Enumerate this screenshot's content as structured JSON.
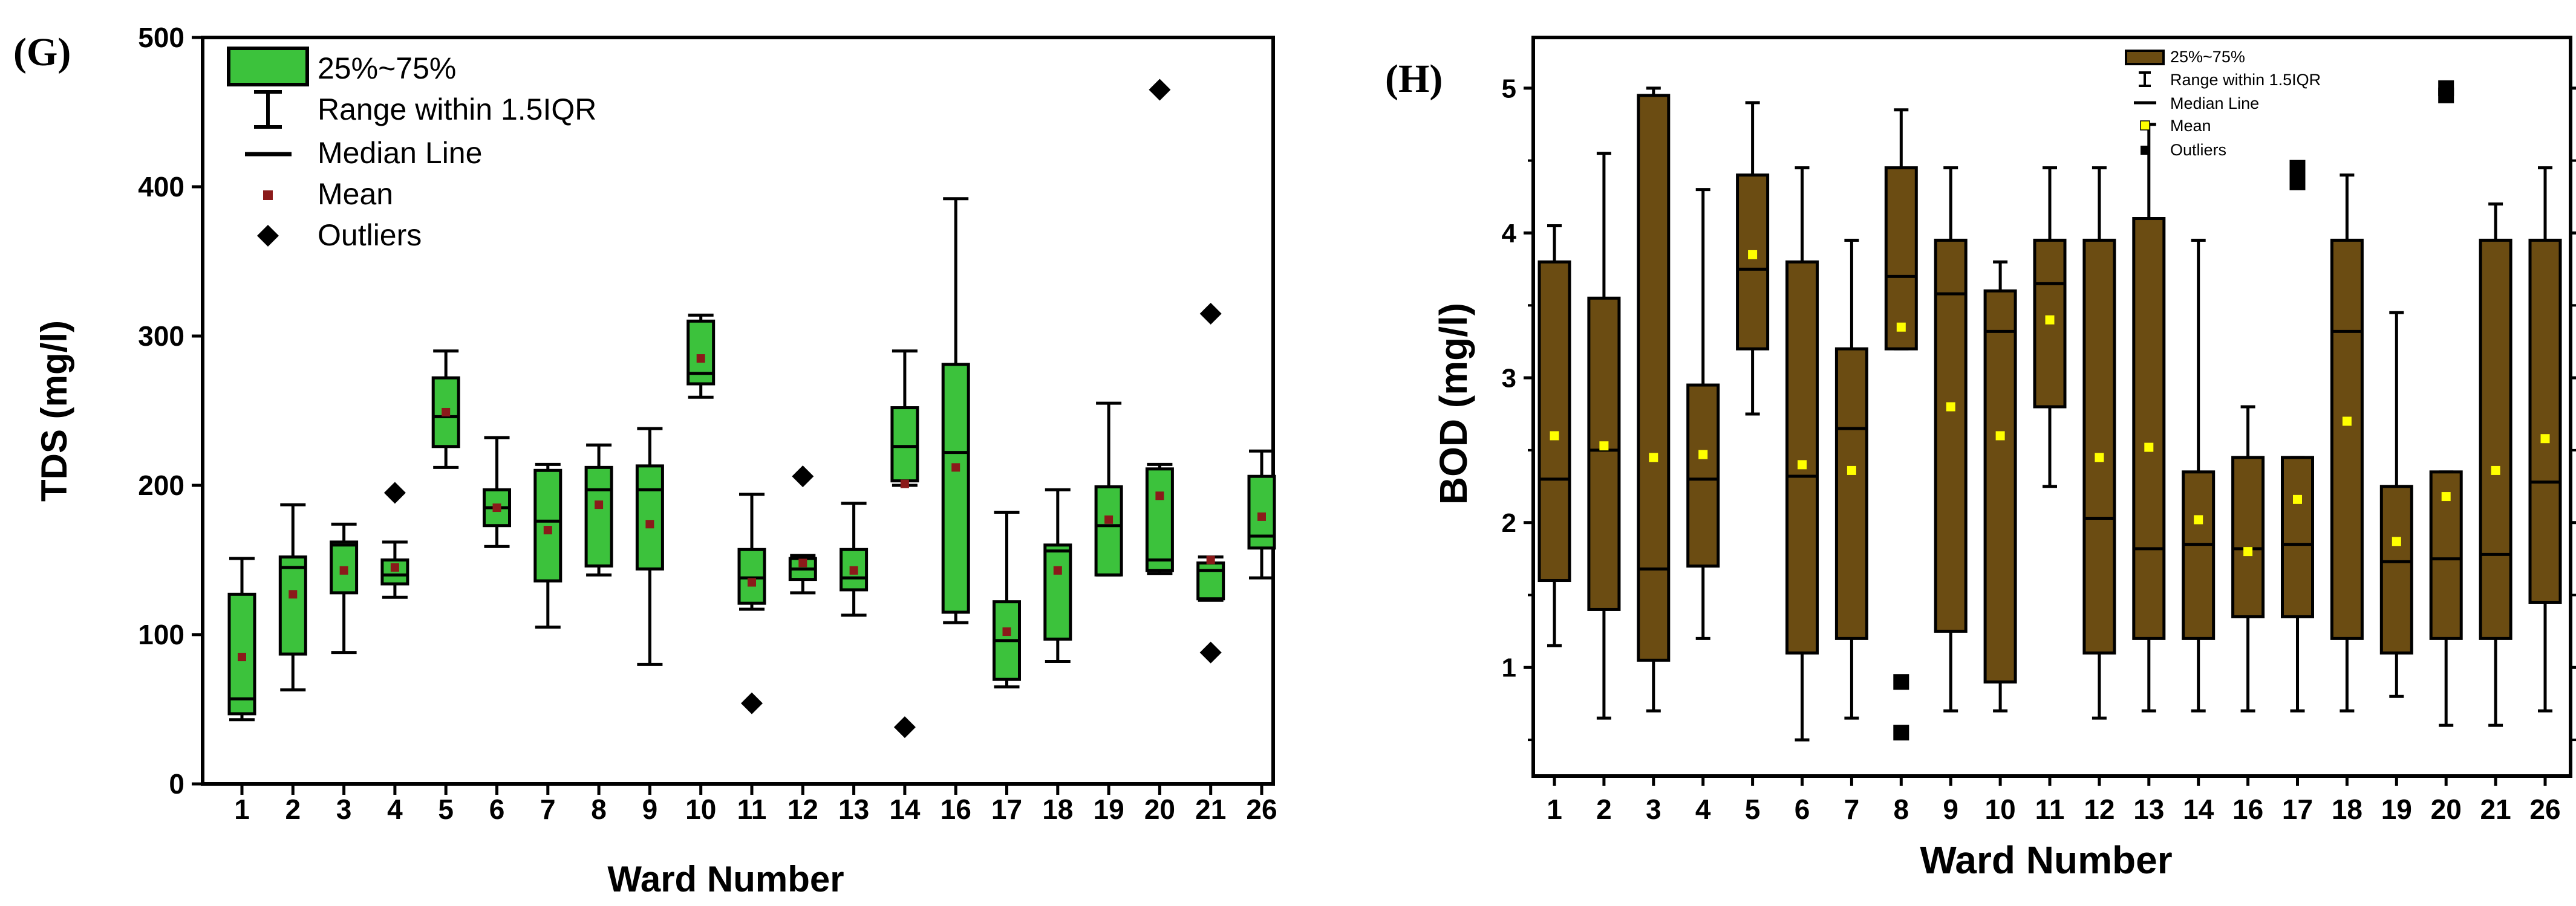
{
  "chart_data": [
    {
      "panel": "(G)",
      "type": "box",
      "xlabel": "Ward Number",
      "ylabel": "TDS (mg/l)",
      "ylim": [
        0,
        500
      ],
      "yticks": [
        0,
        100,
        200,
        300,
        400,
        500
      ],
      "categories": [
        "1",
        "2",
        "3",
        "4",
        "5",
        "6",
        "7",
        "8",
        "9",
        "10",
        "11",
        "12",
        "13",
        "14",
        "16",
        "17",
        "18",
        "19",
        "20",
        "21",
        "26"
      ],
      "boxes": [
        {
          "q1": 47,
          "median": 57,
          "q3": 127,
          "wlo": 43,
          "whi": 151,
          "mean": 85,
          "outliers": []
        },
        {
          "q1": 87,
          "median": 145,
          "q3": 152,
          "wlo": 63,
          "whi": 187,
          "mean": 127,
          "outliers": []
        },
        {
          "q1": 128,
          "median": 160,
          "q3": 162,
          "wlo": 88,
          "whi": 174,
          "mean": 143,
          "outliers": []
        },
        {
          "q1": 134,
          "median": 140,
          "q3": 150,
          "wlo": 125,
          "whi": 162,
          "mean": 145,
          "outliers": [
            195
          ]
        },
        {
          "q1": 226,
          "median": 246,
          "q3": 272,
          "wlo": 212,
          "whi": 290,
          "mean": 249,
          "outliers": []
        },
        {
          "q1": 173,
          "median": 185,
          "q3": 197,
          "wlo": 159,
          "whi": 232,
          "mean": 185,
          "outliers": []
        },
        {
          "q1": 136,
          "median": 176,
          "q3": 210,
          "wlo": 105,
          "whi": 214,
          "mean": 170,
          "outliers": []
        },
        {
          "q1": 146,
          "median": 197,
          "q3": 212,
          "wlo": 140,
          "whi": 227,
          "mean": 187,
          "outliers": []
        },
        {
          "q1": 144,
          "median": 197,
          "q3": 213,
          "wlo": 80,
          "whi": 238,
          "mean": 174,
          "outliers": []
        },
        {
          "q1": 268,
          "median": 275,
          "q3": 310,
          "wlo": 259,
          "whi": 314,
          "mean": 285,
          "outliers": []
        },
        {
          "q1": 121,
          "median": 138,
          "q3": 157,
          "wlo": 117,
          "whi": 194,
          "mean": 135,
          "outliers": [
            54
          ]
        },
        {
          "q1": 137,
          "median": 144,
          "q3": 151,
          "wlo": 128,
          "whi": 153,
          "mean": 148,
          "outliers": [
            206
          ]
        },
        {
          "q1": 130,
          "median": 138,
          "q3": 157,
          "wlo": 113,
          "whi": 188,
          "mean": 143,
          "outliers": []
        },
        {
          "q1": 203,
          "median": 226,
          "q3": 252,
          "wlo": 200,
          "whi": 290,
          "mean": 201,
          "outliers": [
            38
          ]
        },
        {
          "q1": 115,
          "median": 222,
          "q3": 281,
          "wlo": 108,
          "whi": 392,
          "mean": 212,
          "outliers": []
        },
        {
          "q1": 70,
          "median": 96,
          "q3": 122,
          "wlo": 65,
          "whi": 182,
          "mean": 102,
          "outliers": []
        },
        {
          "q1": 97,
          "median": 156,
          "q3": 160,
          "wlo": 82,
          "whi": 197,
          "mean": 143,
          "outliers": []
        },
        {
          "q1": 140,
          "median": 173,
          "q3": 199,
          "wlo": 140,
          "whi": 255,
          "mean": 177,
          "outliers": []
        },
        {
          "q1": 143,
          "median": 150,
          "q3": 211,
          "wlo": 141,
          "whi": 214,
          "mean": 193,
          "outliers": [
            465
          ]
        },
        {
          "q1": 124,
          "median": 143,
          "q3": 148,
          "wlo": 123,
          "whi": 152,
          "mean": 150,
          "outliers": [
            315,
            88
          ]
        },
        {
          "q1": 158,
          "median": 166,
          "q3": 206,
          "wlo": 138,
          "whi": 223,
          "mean": 179,
          "outliers": []
        }
      ],
      "legend": {
        "box": "25%~75%",
        "range": "Range within 1.5IQR",
        "median": "Median Line",
        "mean": "Mean",
        "outliers": "Outliers",
        "placement": "top-left"
      },
      "colors": {
        "box": "#3cc23c",
        "mean": "#8b1a1a",
        "outlier": "#000000"
      }
    },
    {
      "panel": "(H)",
      "type": "box",
      "xlabel": "Ward Number",
      "ylabel": "BOD (mg/l)",
      "ylim": [
        0.25,
        5.35
      ],
      "yticks": [
        1,
        2,
        3,
        4,
        5
      ],
      "categories": [
        "1",
        "2",
        "3",
        "4",
        "5",
        "6",
        "7",
        "8",
        "9",
        "10",
        "11",
        "12",
        "13",
        "14",
        "16",
        "17",
        "18",
        "19",
        "20",
        "21",
        "26"
      ],
      "boxes": [
        {
          "q1": 1.6,
          "median": 2.3,
          "q3": 3.8,
          "wlo": 1.15,
          "whi": 4.05,
          "mean": 2.6,
          "outliers": []
        },
        {
          "q1": 1.4,
          "median": 2.5,
          "q3": 3.55,
          "wlo": 0.65,
          "whi": 4.55,
          "mean": 2.53,
          "outliers": []
        },
        {
          "q1": 1.05,
          "median": 1.68,
          "q3": 4.95,
          "wlo": 0.7,
          "whi": 5.0,
          "mean": 2.45,
          "outliers": []
        },
        {
          "q1": 1.7,
          "median": 2.3,
          "q3": 2.95,
          "wlo": 1.2,
          "whi": 4.3,
          "mean": 2.47,
          "outliers": []
        },
        {
          "q1": 3.2,
          "median": 3.75,
          "q3": 4.4,
          "wlo": 2.75,
          "whi": 4.9,
          "mean": 3.85,
          "outliers": []
        },
        {
          "q1": 1.1,
          "median": 2.32,
          "q3": 3.8,
          "wlo": 0.5,
          "whi": 4.45,
          "mean": 2.4,
          "outliers": []
        },
        {
          "q1": 1.2,
          "median": 2.65,
          "q3": 3.2,
          "wlo": 0.65,
          "whi": 3.95,
          "mean": 2.36,
          "outliers": []
        },
        {
          "q1": 3.2,
          "median": 3.7,
          "q3": 4.45,
          "wlo": 3.2,
          "whi": 4.85,
          "mean": 3.35,
          "outliers": [
            0.9,
            0.55
          ]
        },
        {
          "q1": 1.25,
          "median": 3.58,
          "q3": 3.95,
          "wlo": 0.7,
          "whi": 4.45,
          "mean": 2.8,
          "outliers": []
        },
        {
          "q1": 0.9,
          "median": 3.32,
          "q3": 3.6,
          "wlo": 0.7,
          "whi": 3.8,
          "mean": 2.6,
          "outliers": []
        },
        {
          "q1": 2.8,
          "median": 3.65,
          "q3": 3.95,
          "wlo": 2.25,
          "whi": 4.45,
          "mean": 3.4,
          "outliers": []
        },
        {
          "q1": 1.1,
          "median": 2.03,
          "q3": 3.95,
          "wlo": 0.65,
          "whi": 4.45,
          "mean": 2.45,
          "outliers": []
        },
        {
          "q1": 1.2,
          "median": 1.82,
          "q3": 4.1,
          "wlo": 0.7,
          "whi": 4.75,
          "mean": 2.52,
          "outliers": []
        },
        {
          "q1": 1.2,
          "median": 1.85,
          "q3": 2.35,
          "wlo": 0.7,
          "whi": 3.95,
          "mean": 2.02,
          "outliers": []
        },
        {
          "q1": 1.35,
          "median": 1.82,
          "q3": 2.45,
          "wlo": 0.7,
          "whi": 2.8,
          "mean": 1.8,
          "outliers": []
        },
        {
          "q1": 1.35,
          "median": 1.85,
          "q3": 2.45,
          "wlo": 0.7,
          "whi": 2.45,
          "mean": 2.16,
          "outliers": [
            4.45,
            4.35
          ]
        },
        {
          "q1": 1.2,
          "median": 3.32,
          "q3": 3.95,
          "wlo": 0.7,
          "whi": 4.4,
          "mean": 2.7,
          "outliers": []
        },
        {
          "q1": 1.1,
          "median": 1.73,
          "q3": 2.25,
          "wlo": 0.8,
          "whi": 3.45,
          "mean": 1.87,
          "outliers": []
        },
        {
          "q1": 1.2,
          "median": 1.75,
          "q3": 2.35,
          "wlo": 0.6,
          "whi": 2.35,
          "mean": 2.18,
          "outliers": [
            5.0,
            4.95
          ]
        },
        {
          "q1": 1.2,
          "median": 1.78,
          "q3": 3.95,
          "wlo": 0.6,
          "whi": 4.2,
          "mean": 2.36,
          "outliers": []
        },
        {
          "q1": 1.45,
          "median": 2.28,
          "q3": 3.95,
          "wlo": 0.7,
          "whi": 4.45,
          "mean": 2.58,
          "outliers": []
        }
      ],
      "legend": {
        "box": "25%~75%",
        "range": "Range within 1.5IQR",
        "median": "Median Line",
        "mean": "Mean",
        "outliers": "Outliers",
        "placement": "top-center"
      },
      "colors": {
        "box": "#6b4c12",
        "mean": "#ffff00",
        "outlier": "#000000"
      }
    }
  ]
}
